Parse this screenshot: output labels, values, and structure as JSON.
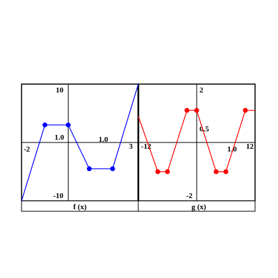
{
  "chart_data": [
    {
      "type": "line",
      "title": "",
      "caption": "f (x)",
      "xlim": [
        -2,
        3
      ],
      "ylim": [
        -10,
        10
      ],
      "x_tick_labels": {
        "min": "-2",
        "mid": "1.0",
        "max": "3"
      },
      "y_tick_labels": {
        "max": "10",
        "mid": "1.0",
        "min": "-10"
      },
      "color": "#0000ff",
      "series": [
        {
          "points": [
            [
              -2,
              -10
            ],
            [
              -1,
              3
            ],
            [
              0,
              3
            ],
            [
              0.9,
              -4.5
            ],
            [
              1.9,
              -4.5
            ],
            [
              3,
              10
            ]
          ],
          "markers": [
            [
              -1,
              3
            ],
            [
              0,
              3
            ],
            [
              0.9,
              -4.5
            ],
            [
              1.9,
              -4.5
            ]
          ]
        }
      ]
    },
    {
      "type": "line",
      "title": "",
      "caption": "g (x)",
      "xlim": [
        -12,
        12
      ],
      "ylim": [
        -2,
        2
      ],
      "x_tick_labels": {
        "min": "-12",
        "mid": "1.0",
        "max": "12"
      },
      "y_tick_labels": {
        "max": "2",
        "mid": "0.5",
        "min": "-2"
      },
      "color": "#ff0000",
      "series": [
        {
          "points": [
            [
              -12,
              0.9
            ],
            [
              -8,
              -1
            ],
            [
              -6,
              -1
            ],
            [
              -2,
              1.1
            ],
            [
              0,
              1.1
            ],
            [
              4,
              -1
            ],
            [
              6,
              -1
            ],
            [
              10,
              1.1
            ],
            [
              12,
              1.1
            ]
          ],
          "markers": [
            [
              -8,
              -1
            ],
            [
              -6,
              -1
            ],
            [
              -2,
              1.1
            ],
            [
              0,
              1.1
            ],
            [
              4,
              -1
            ],
            [
              6,
              -1
            ],
            [
              10,
              1.1
            ]
          ]
        }
      ]
    }
  ]
}
